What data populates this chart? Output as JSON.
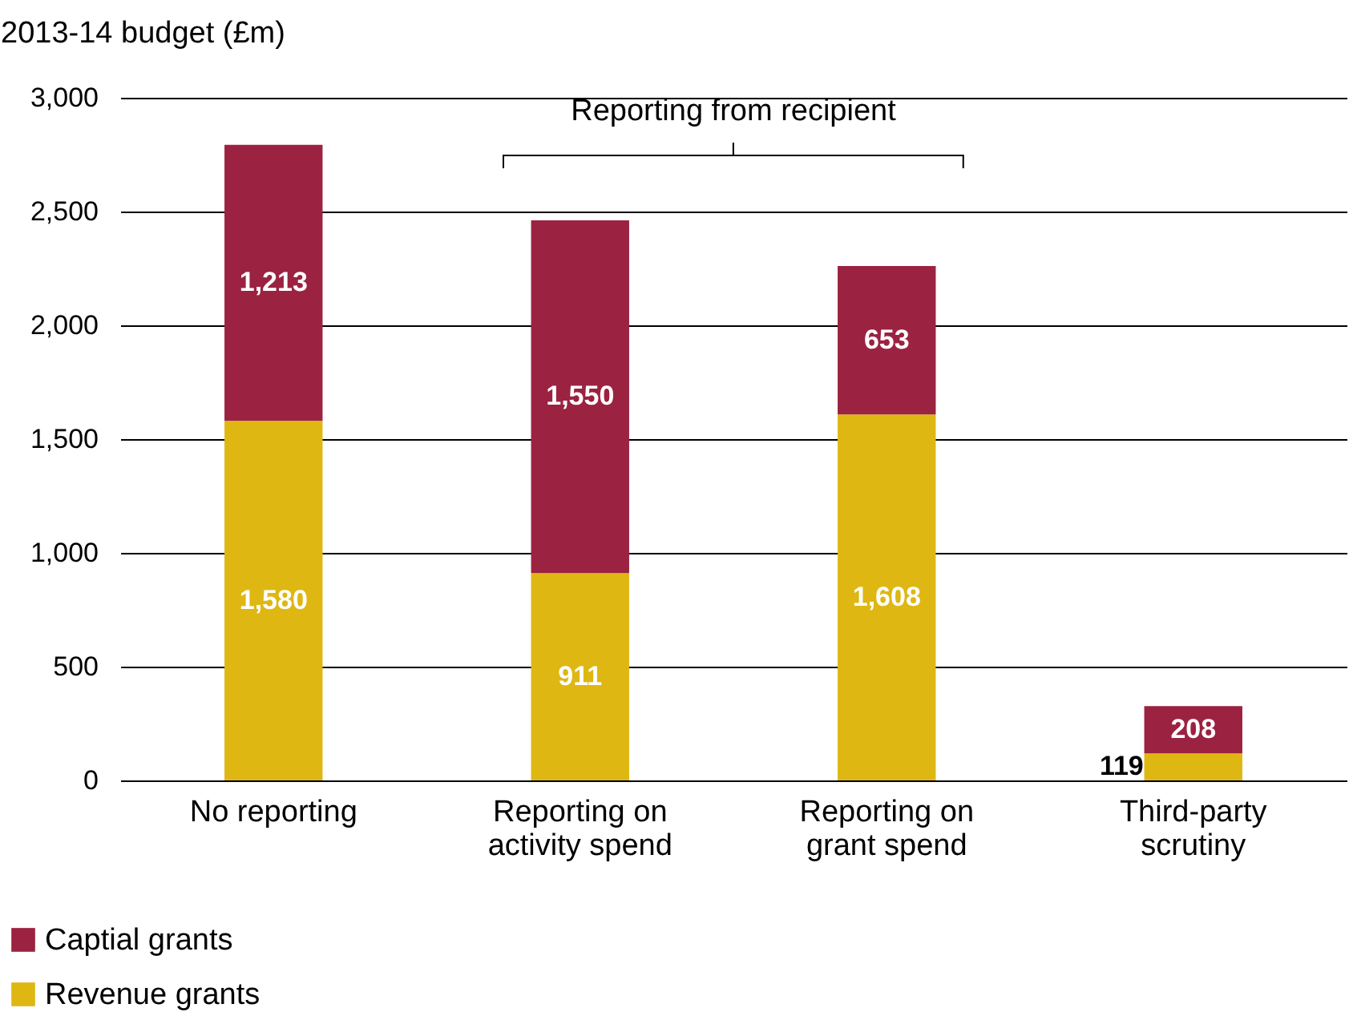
{
  "chart_data": {
    "type": "bar",
    "ylabel": "2013-14 budget (£m)",
    "categories": [
      "No reporting",
      "Reporting on\nactivity spend",
      "Reporting on\ngrant spend",
      "Third-party\nscrutiny"
    ],
    "series": [
      {
        "name": "Revenue grants",
        "color": "#dfb713",
        "values": [
          1580,
          911,
          1608,
          119
        ],
        "value_labels": [
          "1,580",
          "911",
          "1,608",
          "119"
        ]
      },
      {
        "name": "Captial grants",
        "color": "#9b2240",
        "values": [
          1213,
          1550,
          653,
          208
        ],
        "value_labels": [
          "1,213",
          "1,550",
          "653",
          "208"
        ]
      }
    ],
    "stacked": true,
    "ylim": [
      0,
      3000
    ],
    "yticks": [
      0,
      500,
      {
        "value": 1000,
        "label": "1,000"
      },
      {
        "value": 1500,
        "label": "1,500"
      },
      {
        "value": 2000,
        "label": "2,000"
      },
      {
        "value": 2500,
        "label": "2,500"
      },
      {
        "value": 3000,
        "label": "3,000"
      }
    ],
    "grid": "y",
    "legend": "bottom left",
    "annotations": [
      "Reporting from recipient"
    ]
  }
}
